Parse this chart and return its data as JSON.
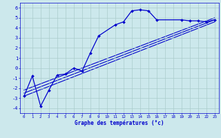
{
  "scatter_x": [
    0,
    1,
    2,
    3,
    4,
    5,
    6,
    7,
    8,
    9,
    11,
    12,
    13,
    14,
    15,
    16,
    19,
    20,
    21,
    22,
    23
  ],
  "scatter_y": [
    -2.8,
    -0.8,
    -3.8,
    -2.2,
    -0.7,
    -0.6,
    0.0,
    -0.3,
    1.5,
    3.2,
    4.3,
    4.6,
    5.7,
    5.8,
    5.7,
    4.8,
    4.8,
    4.7,
    4.7,
    4.6,
    4.8
  ],
  "reg_lines": [
    {
      "x": [
        0,
        23
      ],
      "y": [
        -2.8,
        4.6
      ]
    },
    {
      "x": [
        0,
        23
      ],
      "y": [
        -2.5,
        4.8
      ]
    },
    {
      "x": [
        0,
        23
      ],
      "y": [
        -2.2,
        5.0
      ]
    }
  ],
  "xlim": [
    -0.5,
    23.5
  ],
  "ylim": [
    -4.5,
    6.5
  ],
  "xticks": [
    0,
    1,
    2,
    3,
    4,
    5,
    6,
    7,
    8,
    9,
    10,
    11,
    12,
    13,
    14,
    15,
    16,
    17,
    18,
    19,
    20,
    21,
    22,
    23
  ],
  "yticks": [
    -4,
    -3,
    -2,
    -1,
    0,
    1,
    2,
    3,
    4,
    5,
    6
  ],
  "xlabel": "Graphe des températures (°c)",
  "line_color": "#0000cc",
  "bg_color": "#cce8ec",
  "grid_color": "#aacccc"
}
